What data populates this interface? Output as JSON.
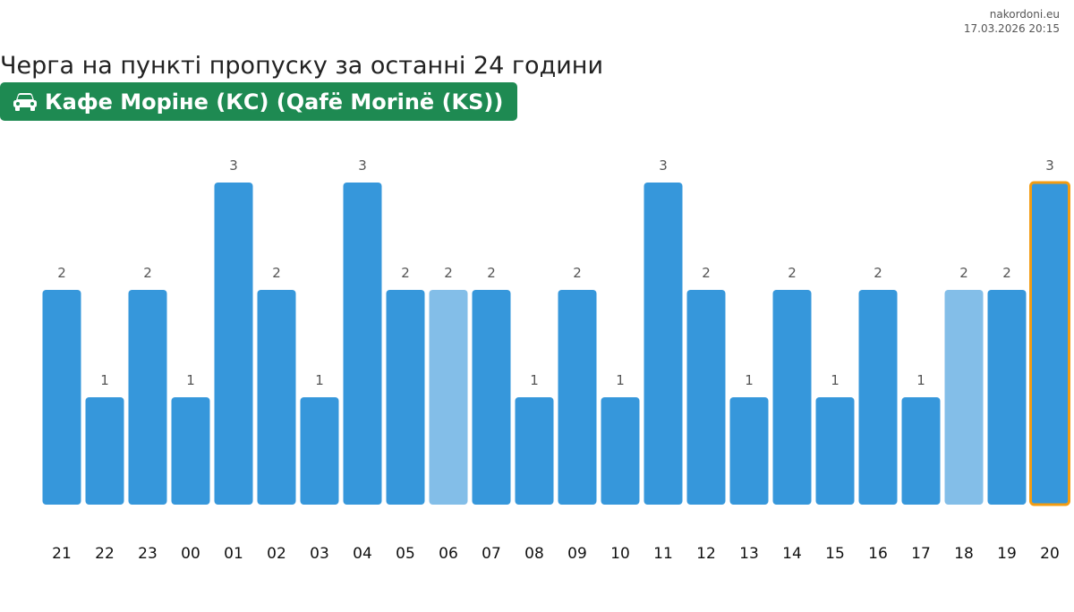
{
  "source": {
    "site": "nakordoni.eu",
    "timestamp": "17.03.2026 20:15"
  },
  "title": "Черга на пункті пропуску за останні 24 години",
  "station": {
    "icon": "car-icon",
    "name": "Кафе Моріне (КС) (Qafë Morinë (KS))"
  },
  "colors": {
    "bar": "#3697db",
    "bar_light": "#83bee8",
    "highlight_border": "#f39c12",
    "station_bg": "#1e8a52",
    "label": "#555555",
    "tick": "#111111"
  },
  "chart_data": {
    "type": "bar",
    "categories": [
      "21",
      "22",
      "23",
      "00",
      "01",
      "02",
      "03",
      "04",
      "05",
      "06",
      "07",
      "08",
      "09",
      "10",
      "11",
      "12",
      "13",
      "14",
      "15",
      "16",
      "17",
      "18",
      "19",
      "20"
    ],
    "values": [
      2,
      1,
      2,
      1,
      3,
      2,
      1,
      3,
      2,
      2,
      2,
      1,
      2,
      1,
      3,
      2,
      1,
      2,
      1,
      2,
      1,
      2,
      2,
      3
    ],
    "light_categories": [
      "06",
      "18"
    ],
    "highlight_category": "20",
    "ylim": [
      0,
      3
    ],
    "grid": false,
    "title": "",
    "xlabel": "",
    "ylabel": ""
  }
}
